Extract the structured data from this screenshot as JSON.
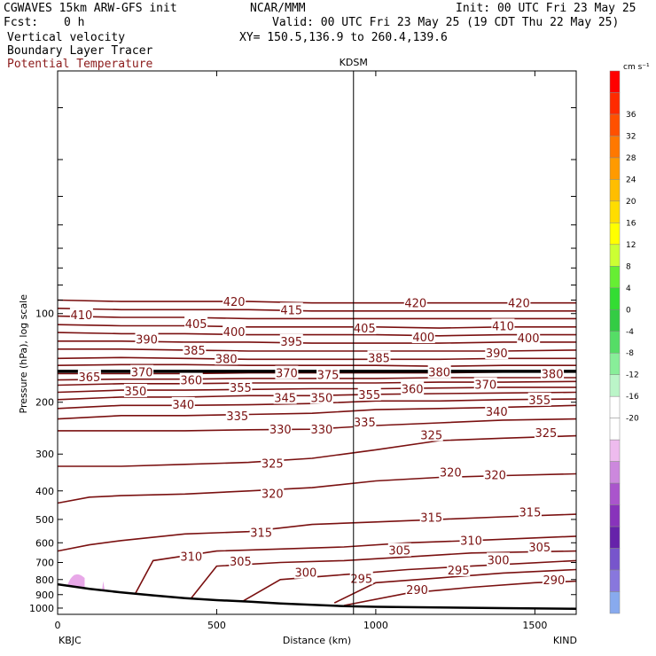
{
  "header": {
    "model": "CGWAVES 15km ARW-GFS init",
    "org": "NCAR/MMM",
    "init": "Init: 00 UTC Fri 23 May 25",
    "fcst_label": "Fcst:",
    "fcst_value": "0 h",
    "valid": "Valid: 00 UTC Fri 23 May 25 (19 CDT Thu 22 May 25)",
    "field1": "Vertical velocity",
    "xy": "XY= 150.5,136.9 to 260.4,139.6",
    "field2": "Boundary Layer Tracer",
    "field3": "Potential Temperature"
  },
  "colors": {
    "theta_line": "#7a1010",
    "tropopause": "#000000",
    "terrain": "#000000",
    "tracer_fill": "#e8a8e8"
  },
  "chart_data": {
    "type": "line",
    "subtype": "vertical cross-section contour",
    "xlabel": "Distance (km)",
    "ylabel": "Pressure (hPa), log scale",
    "y_scale": "log",
    "xlim": [
      0,
      1630
    ],
    "ylim": [
      1050,
      15
    ],
    "x_ticks": [
      "0",
      "500",
      "1000",
      "1500"
    ],
    "y_ticks": [
      "100",
      "200",
      "300",
      "400",
      "500",
      "600",
      "700",
      "800",
      "900",
      "1000"
    ],
    "y_tick_values": [
      100,
      200,
      300,
      400,
      500,
      600,
      700,
      800,
      900,
      1000
    ],
    "left_station": "KBJC",
    "right_station": "KIND",
    "mid_station": "KDSM",
    "mid_station_x": 930,
    "tropopause_p": 157,
    "terrain": {
      "x": [
        0,
        100,
        200,
        300,
        400,
        500,
        600,
        700,
        800,
        900,
        1000,
        1200,
        1400,
        1630
      ],
      "p": [
        830,
        860,
        885,
        905,
        925,
        940,
        950,
        965,
        975,
        985,
        990,
        995,
        1000,
        1005
      ]
    },
    "theta_contours": [
      {
        "value": 290,
        "x": [
          900,
          1100,
          1300,
          1500,
          1630
        ],
        "p": [
          980,
          890,
          850,
          820,
          810
        ]
      },
      {
        "value": 295,
        "x": [
          870,
          1000,
          1200,
          1400,
          1630
        ],
        "p": [
          960,
          820,
          790,
          760,
          740
        ]
      },
      {
        "value": 300,
        "x": [
          580,
          700,
          900,
          1100,
          1300,
          1630
        ],
        "p": [
          950,
          800,
          770,
          740,
          720,
          690
        ]
      },
      {
        "value": 305,
        "x": [
          420,
          500,
          700,
          900,
          1100,
          1300,
          1630
        ],
        "p": [
          925,
          720,
          700,
          690,
          670,
          650,
          640
        ]
      },
      {
        "value": 310,
        "x": [
          245,
          300,
          500,
          700,
          900,
          1100,
          1300,
          1630
        ],
        "p": [
          890,
          690,
          640,
          630,
          620,
          600,
          590,
          570
        ]
      },
      {
        "value": 315,
        "x": [
          0,
          100,
          200,
          400,
          600,
          800,
          1000,
          1200,
          1400,
          1630
        ],
        "p": [
          640,
          610,
          590,
          560,
          550,
          520,
          510,
          500,
          490,
          480
        ]
      },
      {
        "value": 320,
        "x": [
          0,
          100,
          200,
          400,
          600,
          800,
          1000,
          1200,
          1400,
          1630
        ],
        "p": [
          440,
          420,
          415,
          410,
          400,
          390,
          370,
          360,
          355,
          350
        ]
      },
      {
        "value": 325,
        "x": [
          0,
          200,
          400,
          600,
          800,
          1000,
          1200,
          1400,
          1630
        ],
        "p": [
          330,
          330,
          325,
          320,
          310,
          290,
          270,
          265,
          260
        ]
      },
      {
        "value": 330,
        "x": [
          0,
          200,
          400,
          600,
          800,
          1000,
          1200,
          1400,
          1630
        ],
        "p": [
          250,
          250,
          250,
          248,
          247,
          240,
          235,
          230,
          228
        ]
      },
      {
        "value": 335,
        "x": [
          0,
          200,
          400,
          600,
          800,
          1000,
          1200,
          1400,
          1630
        ],
        "p": [
          228,
          222,
          222,
          220,
          218,
          212,
          210,
          208,
          205
        ]
      },
      {
        "value": 340,
        "x": [
          0,
          200,
          400,
          600,
          800,
          1000,
          1200,
          1400,
          1630
        ],
        "p": [
          210,
          205,
          205,
          204,
          202,
          198,
          198,
          196,
          195
        ]
      },
      {
        "value": 345,
        "x": [
          0,
          200,
          400,
          600,
          800,
          1000,
          1200,
          1400,
          1630
        ],
        "p": [
          196,
          192,
          192,
          190,
          190,
          188,
          187,
          186,
          185
        ]
      },
      {
        "value": 350,
        "x": [
          0,
          200,
          400,
          600,
          800,
          1000,
          1200,
          1400,
          1630
        ],
        "p": [
          185,
          182,
          182,
          181,
          180,
          180,
          179,
          178,
          178
        ]
      },
      {
        "value": 355,
        "x": [
          0,
          200,
          400,
          600,
          800,
          1000,
          1200,
          1400,
          1630
        ],
        "p": [
          175,
          173,
          173,
          172,
          172,
          172,
          171,
          171,
          170
        ]
      },
      {
        "value": 360,
        "x": [
          0,
          200,
          400,
          600,
          800,
          1000,
          1200,
          1400,
          1630
        ],
        "p": [
          168,
          167,
          167,
          166,
          166,
          166,
          165,
          165,
          165
        ]
      },
      {
        "value": 370,
        "x": [
          0,
          200,
          400,
          600,
          800,
          1000,
          1200,
          1400,
          1630
        ],
        "p": [
          160,
          160,
          160,
          159,
          159,
          159,
          159,
          158,
          158
        ]
      },
      {
        "value": 380,
        "x": [
          0,
          200,
          400,
          600,
          800,
          1000,
          1200,
          1400,
          1630
        ],
        "p": [
          150,
          149,
          149,
          150,
          150,
          150,
          151,
          150,
          150
        ]
      },
      {
        "value": 385,
        "x": [
          0,
          200,
          400,
          600,
          800,
          1000,
          1200,
          1400,
          1630
        ],
        "p": [
          142,
          141,
          142,
          143,
          143,
          143,
          143,
          142,
          142
        ]
      },
      {
        "value": 390,
        "x": [
          0,
          200,
          400,
          600,
          800,
          1000,
          1200,
          1400,
          1630
        ],
        "p": [
          132,
          132,
          133,
          134,
          134,
          134,
          134,
          134,
          133
        ]
      },
      {
        "value": 395,
        "x": [
          0,
          200,
          400,
          600,
          800,
          1000,
          1200,
          1400,
          1630
        ],
        "p": [
          124,
          124,
          125,
          125,
          126,
          126,
          126,
          125,
          125
        ]
      },
      {
        "value": 400,
        "x": [
          0,
          200,
          400,
          600,
          800,
          1000,
          1200,
          1400,
          1630
        ],
        "p": [
          116,
          117,
          117,
          118,
          118,
          118,
          119,
          118,
          118
        ]
      },
      {
        "value": 405,
        "x": [
          0,
          200,
          400,
          600,
          800,
          1000,
          1200,
          1400,
          1630
        ],
        "p": [
          109,
          110,
          110,
          111,
          111,
          111,
          112,
          111,
          111
        ]
      },
      {
        "value": 410,
        "x": [
          0,
          200,
          400,
          600,
          800,
          1000,
          1200,
          1400,
          1630
        ],
        "p": [
          102,
          103,
          103,
          104,
          104,
          104,
          104,
          104,
          104
        ]
      },
      {
        "value": 415,
        "x": [
          0,
          200,
          400,
          600,
          800,
          1000,
          1200,
          1400,
          1630
        ],
        "p": [
          96,
          97,
          97,
          97,
          98,
          98,
          98,
          98,
          98
        ]
      },
      {
        "value": 420,
        "x": [
          0,
          200,
          400,
          600,
          800,
          1000,
          1200,
          1400,
          1630
        ],
        "p": [
          90,
          91,
          91,
          91,
          92,
          92,
          92,
          92,
          92
        ]
      }
    ],
    "contour_labels": [
      {
        "text": "410",
        "x": 75,
        "p": 101
      },
      {
        "text": "420",
        "x": 555,
        "p": 91
      },
      {
        "text": "415",
        "x": 735,
        "p": 97
      },
      {
        "text": "420",
        "x": 1125,
        "p": 92
      },
      {
        "text": "420",
        "x": 1450,
        "p": 92
      },
      {
        "text": "405",
        "x": 435,
        "p": 108
      },
      {
        "text": "410",
        "x": 1400,
        "p": 110
      },
      {
        "text": "400",
        "x": 555,
        "p": 115
      },
      {
        "text": "405",
        "x": 965,
        "p": 112
      },
      {
        "text": "390",
        "x": 280,
        "p": 122
      },
      {
        "text": "395",
        "x": 735,
        "p": 124
      },
      {
        "text": "400",
        "x": 1150,
        "p": 120
      },
      {
        "text": "400",
        "x": 1480,
        "p": 121
      },
      {
        "text": "385",
        "x": 430,
        "p": 133
      },
      {
        "text": "380",
        "x": 530,
        "p": 142
      },
      {
        "text": "385",
        "x": 1010,
        "p": 141
      },
      {
        "text": "390",
        "x": 1380,
        "p": 136
      },
      {
        "text": "370",
        "x": 265,
        "p": 158
      },
      {
        "text": "370",
        "x": 720,
        "p": 159
      },
      {
        "text": "375",
        "x": 850,
        "p": 161
      },
      {
        "text": "380",
        "x": 1200,
        "p": 158
      },
      {
        "text": "380",
        "x": 1555,
        "p": 160
      },
      {
        "text": "365",
        "x": 100,
        "p": 164
      },
      {
        "text": "360",
        "x": 420,
        "p": 168
      },
      {
        "text": "360",
        "x": 1115,
        "p": 180
      },
      {
        "text": "370",
        "x": 1345,
        "p": 174
      },
      {
        "text": "355",
        "x": 575,
        "p": 178
      },
      {
        "text": "355",
        "x": 980,
        "p": 188
      },
      {
        "text": "355",
        "x": 1515,
        "p": 196
      },
      {
        "text": "350",
        "x": 245,
        "p": 183
      },
      {
        "text": "345",
        "x": 715,
        "p": 193
      },
      {
        "text": "350",
        "x": 830,
        "p": 193
      },
      {
        "text": "340",
        "x": 395,
        "p": 203
      },
      {
        "text": "340",
        "x": 1380,
        "p": 215
      },
      {
        "text": "335",
        "x": 565,
        "p": 222
      },
      {
        "text": "335",
        "x": 965,
        "p": 233
      },
      {
        "text": "330",
        "x": 700,
        "p": 247
      },
      {
        "text": "330",
        "x": 830,
        "p": 247
      },
      {
        "text": "325",
        "x": 1175,
        "p": 258
      },
      {
        "text": "325",
        "x": 1535,
        "p": 254
      },
      {
        "text": "325",
        "x": 675,
        "p": 322
      },
      {
        "text": "320",
        "x": 1235,
        "p": 345
      },
      {
        "text": "320",
        "x": 1375,
        "p": 352
      },
      {
        "text": "320",
        "x": 675,
        "p": 408
      },
      {
        "text": "315",
        "x": 1175,
        "p": 492
      },
      {
        "text": "315",
        "x": 1485,
        "p": 472
      },
      {
        "text": "315",
        "x": 640,
        "p": 553
      },
      {
        "text": "310",
        "x": 1300,
        "p": 588
      },
      {
        "text": "310",
        "x": 420,
        "p": 667
      },
      {
        "text": "305",
        "x": 1075,
        "p": 636
      },
      {
        "text": "305",
        "x": 1515,
        "p": 620
      },
      {
        "text": "305",
        "x": 575,
        "p": 692
      },
      {
        "text": "300",
        "x": 1385,
        "p": 685
      },
      {
        "text": "300",
        "x": 780,
        "p": 756
      },
      {
        "text": "295",
        "x": 1260,
        "p": 742
      },
      {
        "text": "295",
        "x": 955,
        "p": 792
      },
      {
        "text": "290",
        "x": 1560,
        "p": 800
      },
      {
        "text": "290",
        "x": 1130,
        "p": 865
      }
    ],
    "colorbar": {
      "unit": "cm s⁻¹",
      "labels": [
        "36",
        "32",
        "28",
        "24",
        "20",
        "16",
        "12",
        "8",
        "4",
        "0",
        "-4",
        "-8",
        "-12",
        "-16",
        "-20"
      ],
      "colors": [
        "#ff0000",
        "#ff2a00",
        "#ff5000",
        "#ff7800",
        "#ff9a00",
        "#ffbe00",
        "#ffdd00",
        "#ffff00",
        "#ccff33",
        "#66ee33",
        "#33dd33",
        "#33cc44",
        "#55dd66",
        "#88ee99",
        "#bbf5c8",
        "#ffffff",
        "#ffffff",
        "#eebbee",
        "#cc88dd",
        "#aa55cc",
        "#8833bb",
        "#6622aa",
        "#7755cc",
        "#8877dd",
        "#88aaee"
      ]
    }
  }
}
